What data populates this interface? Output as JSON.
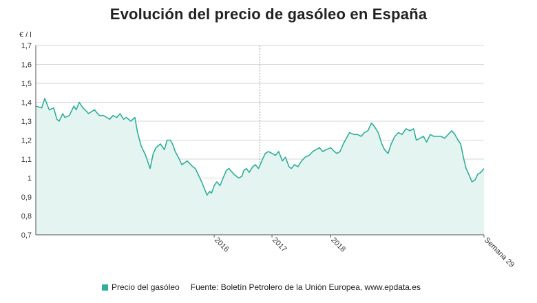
{
  "chart_data": {
    "type": "area",
    "title": "Evolución del precio de gasóleo en España",
    "ylabel": "€ / l",
    "ylim": [
      0.7,
      1.7
    ],
    "yticks": [
      "0,7",
      "0,8",
      "0,9",
      "1",
      "1,1",
      "1,2",
      "1,3",
      "1,4",
      "1,5",
      "1,6",
      "1,7"
    ],
    "xtick_labels": [
      "2016",
      "2017",
      "2018",
      "Semana 29"
    ],
    "xtick_positions": [
      0.398,
      0.527,
      0.658,
      1.0
    ],
    "year_divider_position": 0.5,
    "grid": "horizontal",
    "legend": "bottom",
    "series": [
      {
        "name": "Precio del gasóleo",
        "color": "#2fae9a",
        "x": [
          0.0,
          0.013,
          0.02,
          0.03,
          0.04,
          0.047,
          0.052,
          0.06,
          0.065,
          0.075,
          0.085,
          0.09,
          0.097,
          0.105,
          0.11,
          0.118,
          0.124,
          0.131,
          0.138,
          0.142,
          0.151,
          0.158,
          0.165,
          0.172,
          0.181,
          0.188,
          0.196,
          0.202,
          0.212,
          0.221,
          0.227,
          0.235,
          0.245,
          0.255,
          0.262,
          0.268,
          0.278,
          0.287,
          0.293,
          0.3,
          0.305,
          0.311,
          0.318,
          0.326,
          0.338,
          0.346,
          0.35,
          0.356,
          0.362,
          0.37,
          0.382,
          0.388,
          0.392,
          0.398,
          0.404,
          0.411,
          0.418,
          0.425,
          0.431,
          0.442,
          0.453,
          0.46,
          0.464,
          0.47,
          0.476,
          0.484,
          0.49,
          0.497,
          0.506,
          0.512,
          0.519,
          0.527,
          0.535,
          0.542,
          0.55,
          0.557,
          0.565,
          0.57,
          0.577,
          0.585,
          0.593,
          0.601,
          0.61,
          0.618,
          0.625,
          0.633,
          0.64,
          0.648,
          0.658,
          0.666,
          0.672,
          0.679,
          0.686,
          0.693,
          0.7,
          0.71,
          0.718,
          0.726,
          0.733,
          0.741,
          0.749,
          0.756,
          0.764,
          0.772,
          0.778,
          0.786,
          0.793,
          0.801,
          0.809,
          0.817,
          0.826,
          0.835,
          0.843,
          0.849,
          0.857,
          0.865,
          0.872,
          0.88,
          0.888,
          0.896,
          0.904,
          0.912,
          0.92,
          0.928,
          0.935,
          0.942,
          0.948,
          0.955,
          0.96,
          0.966,
          0.973,
          0.98,
          0.986,
          0.993,
          1.0
        ],
        "values": [
          1.38,
          1.37,
          1.42,
          1.36,
          1.37,
          1.31,
          1.3,
          1.34,
          1.32,
          1.33,
          1.38,
          1.36,
          1.4,
          1.37,
          1.36,
          1.34,
          1.35,
          1.36,
          1.34,
          1.33,
          1.33,
          1.32,
          1.31,
          1.33,
          1.32,
          1.34,
          1.31,
          1.32,
          1.3,
          1.32,
          1.24,
          1.17,
          1.12,
          1.05,
          1.13,
          1.16,
          1.18,
          1.15,
          1.2,
          1.2,
          1.18,
          1.14,
          1.11,
          1.07,
          1.09,
          1.07,
          1.06,
          1.05,
          1.02,
          0.98,
          0.91,
          0.93,
          0.92,
          0.96,
          0.98,
          0.96,
          1.0,
          1.04,
          1.05,
          1.02,
          1.0,
          1.01,
          1.04,
          1.05,
          1.03,
          1.06,
          1.07,
          1.05,
          1.1,
          1.13,
          1.14,
          1.13,
          1.12,
          1.14,
          1.09,
          1.11,
          1.06,
          1.05,
          1.07,
          1.06,
          1.09,
          1.11,
          1.12,
          1.14,
          1.15,
          1.16,
          1.14,
          1.15,
          1.16,
          1.14,
          1.13,
          1.14,
          1.18,
          1.21,
          1.24,
          1.23,
          1.23,
          1.22,
          1.24,
          1.25,
          1.29,
          1.27,
          1.24,
          1.18,
          1.15,
          1.13,
          1.18,
          1.22,
          1.24,
          1.23,
          1.26,
          1.25,
          1.26,
          1.2,
          1.21,
          1.22,
          1.19,
          1.23,
          1.22,
          1.22,
          1.22,
          1.21,
          1.23,
          1.25,
          1.23,
          1.2,
          1.18,
          1.1,
          1.05,
          1.02,
          0.98,
          0.99,
          1.02,
          1.03,
          1.05
        ]
      }
    ],
    "source": "Fuente: Boletín Petrolero de la Unión Europea, www.epdata.es"
  }
}
